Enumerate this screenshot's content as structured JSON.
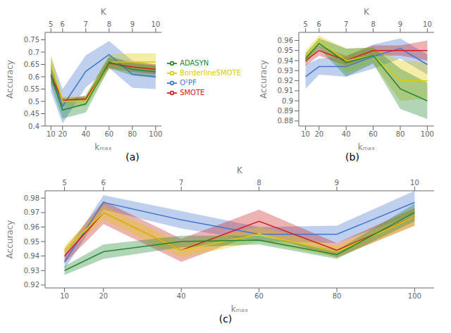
{
  "chart_data": [
    {
      "type": "line",
      "title": "(a)",
      "x": [
        10,
        20,
        40,
        60,
        80,
        100
      ],
      "xlim": [
        5,
        105
      ],
      "xticks": [
        10,
        20,
        40,
        60,
        80,
        100
      ],
      "x2ticks": [
        {
          "value": 10,
          "label": "5"
        },
        {
          "value": 20,
          "label": "6"
        },
        {
          "value": 40,
          "label": "7"
        },
        {
          "value": 60,
          "label": "8"
        },
        {
          "value": 80,
          "label": "9"
        },
        {
          "value": 100,
          "label": "10"
        }
      ],
      "xlabel": "kₘₐₓ",
      "x2label": "K",
      "ylabel": "Accuracy",
      "ylim": [
        0.4,
        0.78
      ],
      "yticks": [
        0.4,
        0.45,
        0.5,
        0.55,
        0.6,
        0.65,
        0.7,
        0.75
      ],
      "legend": "right",
      "series": [
        {
          "name": "O²PF",
          "color": "#4477CC",
          "values": [
            0.61,
            0.48,
            0.622,
            0.69,
            0.61,
            0.6
          ],
          "std": [
            0.07,
            0.07,
            0.065,
            0.055,
            0.055,
            0.05
          ]
        },
        {
          "name": "SMOTE",
          "color": "#CC2222",
          "values": [
            0.605,
            0.505,
            0.51,
            0.655,
            0.64,
            0.63
          ],
          "std": [
            0.03,
            0.01,
            0.01,
            0.02,
            0.02,
            0.02
          ]
        },
        {
          "name": "BorderlineSMOTE",
          "color": "#DDCC00",
          "values": [
            0.65,
            0.5,
            0.5,
            0.66,
            0.66,
            0.66
          ],
          "std": [
            0.04,
            0.02,
            0.02,
            0.03,
            0.035,
            0.035
          ]
        },
        {
          "name": "ADASYN",
          "color": "#228833",
          "values": [
            0.605,
            0.465,
            0.49,
            0.66,
            0.63,
            0.62
          ],
          "std": [
            0.04,
            0.035,
            0.035,
            0.025,
            0.025,
            0.025
          ]
        }
      ]
    },
    {
      "type": "line",
      "title": "(b)",
      "x": [
        10,
        20,
        40,
        60,
        80,
        100
      ],
      "xlim": [
        5,
        105
      ],
      "xticks": [
        10,
        20,
        40,
        60,
        80,
        100
      ],
      "x2ticks": [
        {
          "value": 10,
          "label": "5"
        },
        {
          "value": 20,
          "label": "6"
        },
        {
          "value": 40,
          "label": "7"
        },
        {
          "value": 60,
          "label": "8"
        },
        {
          "value": 80,
          "label": "9"
        },
        {
          "value": 100,
          "label": "10"
        }
      ],
      "xlabel": "kₘₐₓ",
      "x2label": "K",
      "ylabel": "Accuracy",
      "ylim": [
        0.875,
        0.968
      ],
      "yticks": [
        0.88,
        0.89,
        0.9,
        0.91,
        0.92,
        0.93,
        0.94,
        0.95,
        0.96
      ],
      "series": [
        {
          "name": "O²PF",
          "color": "#4477CC",
          "values": [
            0.924,
            0.934,
            0.934,
            0.944,
            0.952,
            0.936
          ],
          "std": [
            0.012,
            0.008,
            0.01,
            0.012,
            0.01,
            0.01
          ]
        },
        {
          "name": "SMOTE",
          "color": "#CC2222",
          "values": [
            0.94,
            0.95,
            0.94,
            0.95,
            0.95,
            0.95
          ],
          "std": [
            0.005,
            0.005,
            0.005,
            0.005,
            0.005,
            0.01
          ]
        },
        {
          "name": "BorderlineSMOTE",
          "color": "#DDCC00",
          "values": [
            0.944,
            0.96,
            0.94,
            0.945,
            0.92,
            0.92
          ],
          "std": [
            0.006,
            0.005,
            0.012,
            0.008,
            0.02,
            0.018
          ]
        },
        {
          "name": "ADASYN",
          "color": "#228833",
          "values": [
            0.942,
            0.957,
            0.938,
            0.945,
            0.912,
            0.9
          ],
          "std": [
            0.005,
            0.005,
            0.014,
            0.008,
            0.02,
            0.018
          ]
        }
      ]
    },
    {
      "type": "line",
      "title": "(c)",
      "x": [
        10,
        20,
        40,
        60,
        80,
        100
      ],
      "xlim": [
        5,
        105
      ],
      "xticks": [
        10,
        20,
        40,
        60,
        80,
        100
      ],
      "x2ticks": [
        {
          "value": 10,
          "label": "5"
        },
        {
          "value": 20,
          "label": "6"
        },
        {
          "value": 40,
          "label": "7"
        },
        {
          "value": 60,
          "label": "8"
        },
        {
          "value": 80,
          "label": "9"
        },
        {
          "value": 100,
          "label": "10"
        }
      ],
      "xlabel": "kₘₐₓ",
      "x2label": "K",
      "ylabel": "Accuracy",
      "ylim": [
        0.918,
        0.985
      ],
      "yticks": [
        0.92,
        0.93,
        0.94,
        0.95,
        0.96,
        0.97,
        0.98
      ],
      "series": [
        {
          "name": "O²PF",
          "color": "#4477CC",
          "values": [
            0.936,
            0.977,
            0.965,
            0.955,
            0.955,
            0.977
          ],
          "std": [
            0.005,
            0.005,
            0.006,
            0.005,
            0.006,
            0.008
          ]
        },
        {
          "name": "SMOTE",
          "color": "#CC2222",
          "values": [
            0.94,
            0.97,
            0.944,
            0.964,
            0.944,
            0.967
          ],
          "std": [
            0.005,
            0.008,
            0.008,
            0.008,
            0.005,
            0.006
          ]
        },
        {
          "name": "BorderlineSMOTE",
          "color": "#DDCC00",
          "values": [
            0.944,
            0.97,
            0.944,
            0.955,
            0.943,
            0.967
          ],
          "std": [
            0.003,
            0.005,
            0.005,
            0.005,
            0.004,
            0.006
          ]
        },
        {
          "name": "ADASYN",
          "color": "#228833",
          "values": [
            0.93,
            0.943,
            0.95,
            0.951,
            0.941,
            0.97
          ],
          "std": [
            0.003,
            0.005,
            0.004,
            0.003,
            0.003,
            0.006
          ]
        }
      ]
    }
  ]
}
